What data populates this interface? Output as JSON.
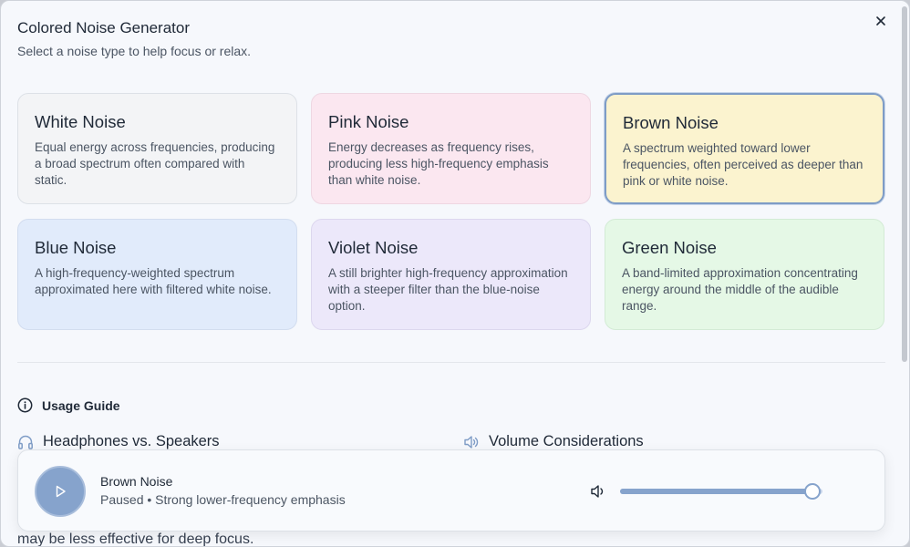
{
  "dialog": {
    "title": "Colored Noise Generator",
    "subtitle": "Select a noise type to help focus or relax."
  },
  "noise_types": [
    {
      "title": "White Noise",
      "description": "Equal energy across frequencies, producing a broad spectrum often compared with static.",
      "bg": "#f3f4f6",
      "border": "#dde1e7",
      "selected": false
    },
    {
      "title": "Pink Noise",
      "description": "Energy decreases as frequency rises, producing less high-frequency emphasis than white noise.",
      "bg": "#fbe7f0",
      "border": "#eed7e2",
      "selected": false
    },
    {
      "title": "Brown Noise",
      "description": "A spectrum weighted toward lower frequencies, often perceived as deeper than pink or white noise.",
      "bg": "#fbf3cf",
      "border": "#7e9cc6",
      "selected": true
    },
    {
      "title": "Blue Noise",
      "description": "A high-frequency-weighted spectrum approximated here with filtered white noise.",
      "bg": "#e1ebfb",
      "border": "#d2ddef",
      "selected": false
    },
    {
      "title": "Violet Noise",
      "description": "A still brighter high-frequency approximation with a steeper filter than the blue-noise option.",
      "bg": "#ece8fa",
      "border": "#dcd7ee",
      "selected": false
    },
    {
      "title": "Green Noise",
      "description": "A band-limited approximation concentrating energy around the middle of the audible range.",
      "bg": "#e5f8e6",
      "border": "#d3ebd5",
      "selected": false
    }
  ],
  "usage_guide": {
    "heading": "Usage Guide",
    "headphones_heading": "Headphones vs. Speakers",
    "volume_heading": "Volume Considerations",
    "trailing_text": "may be less effective for deep focus."
  },
  "player": {
    "track": "Brown Noise",
    "status": "Paused • Strong lower-frequency emphasis",
    "volume": 0.95,
    "accent": "#86a3cc"
  },
  "icons": {
    "close": "close-icon",
    "info": "info-icon",
    "headphones": "headphones-icon",
    "speaker": "speaker-icon",
    "play": "play-icon",
    "volume": "volume-icon"
  }
}
